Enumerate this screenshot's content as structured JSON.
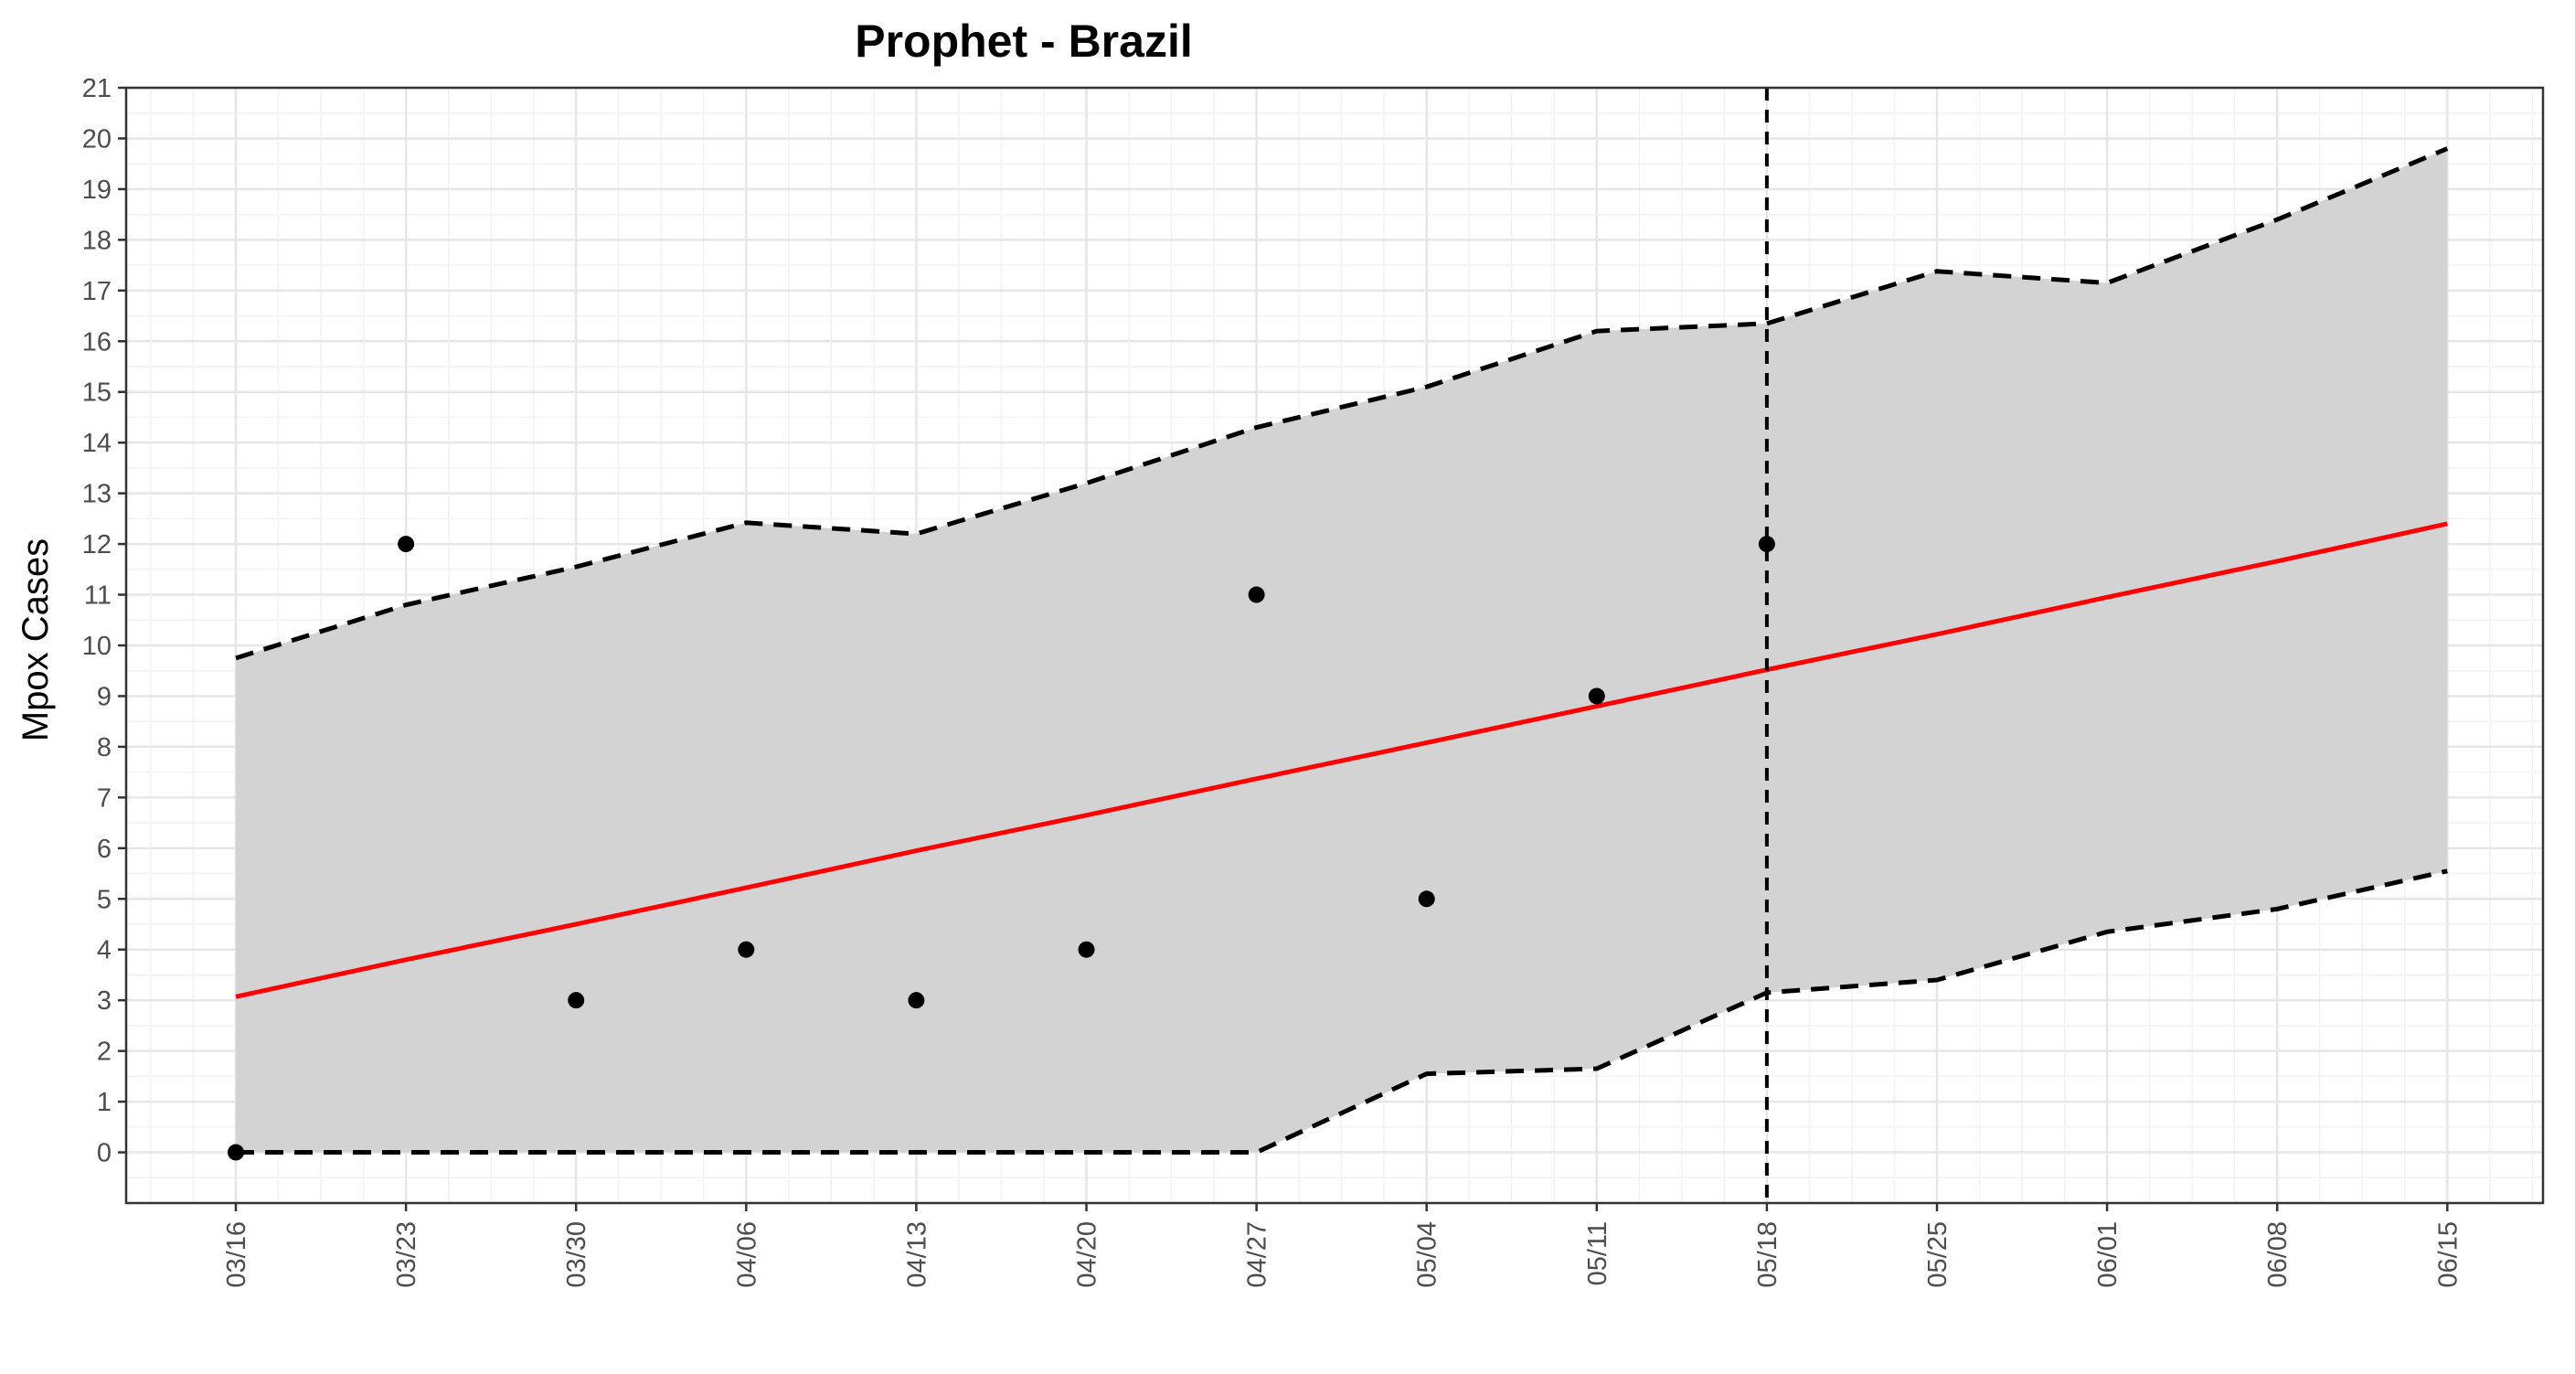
{
  "chart_data": {
    "type": "line",
    "title": "Prophet - Brazil",
    "xlabel": "",
    "ylabel": "Mpox Cases",
    "x_ticks": [
      "03/16",
      "03/23",
      "03/30",
      "04/06",
      "04/13",
      "04/20",
      "04/27",
      "05/04",
      "05/11",
      "05/18",
      "05/25",
      "06/01",
      "06/08",
      "06/15"
    ],
    "y_ticks": [
      0,
      1,
      2,
      3,
      4,
      5,
      6,
      7,
      8,
      9,
      10,
      11,
      12,
      13,
      14,
      15,
      16,
      17,
      18,
      19,
      20,
      21
    ],
    "ylim": [
      -1,
      21
    ],
    "grid": true,
    "legend": "none",
    "cutoff_date": "05/18",
    "series": [
      {
        "kind": "observed_points",
        "x": [
          "03/16",
          "03/23",
          "03/30",
          "04/06",
          "04/13",
          "04/20",
          "04/27",
          "05/04",
          "05/11",
          "05/18"
        ],
        "values": [
          0,
          12,
          3,
          4,
          3,
          4,
          11,
          5,
          9,
          12
        ],
        "color": "#000000"
      },
      {
        "kind": "forecast_line",
        "x": [
          "03/16",
          "03/23",
          "03/30",
          "04/06",
          "04/13",
          "04/20",
          "04/27",
          "05/04",
          "05/11",
          "05/18",
          "05/25",
          "06/01",
          "06/08",
          "06/15"
        ],
        "values": [
          3.07,
          3.8,
          4.5,
          5.22,
          5.95,
          6.65,
          7.37,
          8.08,
          8.8,
          9.52,
          10.22,
          10.95,
          11.66,
          12.4
        ],
        "color": "#ff0000"
      },
      {
        "kind": "upper_bound",
        "x": [
          "03/16",
          "03/23",
          "03/30",
          "04/06",
          "04/13",
          "04/20",
          "04/27",
          "05/04",
          "05/11",
          "05/18",
          "05/25",
          "06/01",
          "06/08",
          "06/15"
        ],
        "values": [
          9.75,
          10.8,
          11.55,
          12.42,
          12.2,
          13.2,
          14.3,
          15.1,
          16.2,
          16.35,
          17.38,
          17.15,
          18.4,
          19.8
        ],
        "color": "#000000"
      },
      {
        "kind": "lower_bound",
        "x": [
          "03/16",
          "03/23",
          "03/30",
          "04/06",
          "04/13",
          "04/20",
          "04/27",
          "05/04",
          "05/11",
          "05/18",
          "05/25",
          "06/01",
          "06/08",
          "06/15"
        ],
        "values": [
          0,
          0,
          0,
          0,
          0,
          0,
          0,
          1.55,
          1.65,
          3.15,
          3.4,
          4.35,
          4.8,
          5.55
        ],
        "color": "#000000"
      }
    ],
    "band_color": "#d3d3d3"
  }
}
